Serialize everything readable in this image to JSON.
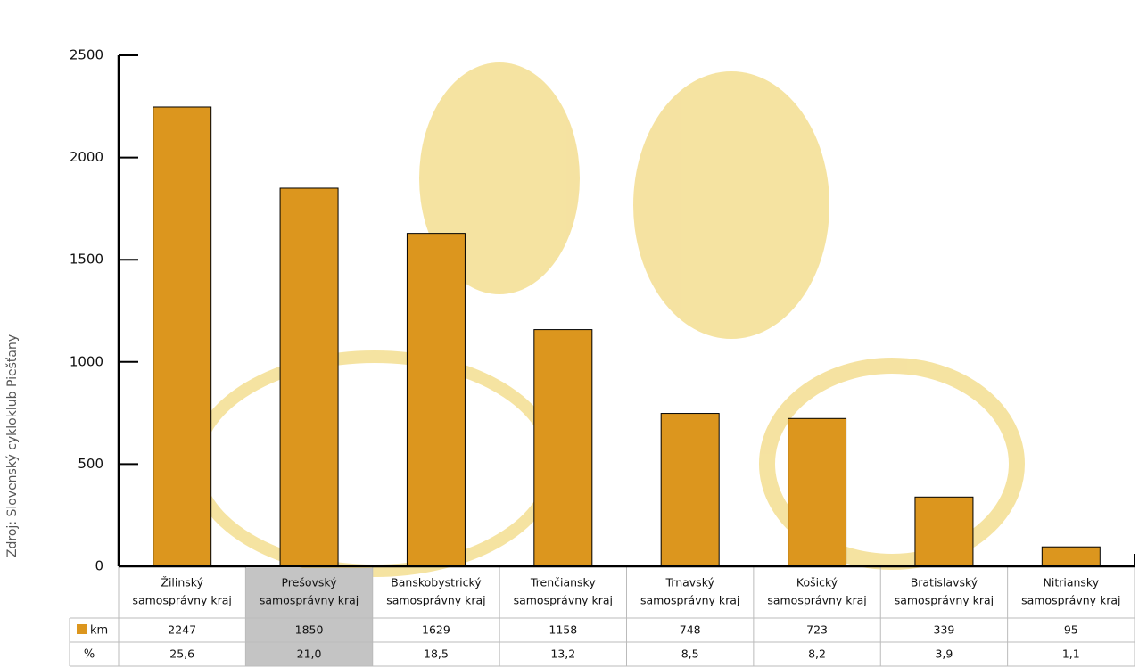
{
  "chart_data": {
    "type": "bar",
    "source": "Zdroj: Slovenský cykloklub Piešťany",
    "categories": [
      [
        "Žilinský",
        "samosprávny kraj"
      ],
      [
        "Prešovský",
        "samosprávny kraj"
      ],
      [
        "Banskobystrický",
        "samosprávny kraj"
      ],
      [
        "Trenčiansky",
        "samosprávny kraj"
      ],
      [
        "Trnavský",
        "samosprávny kraj"
      ],
      [
        "Košický",
        "samosprávny kraj"
      ],
      [
        "Bratislavský",
        "samosprávny kraj"
      ],
      [
        "Nitriansky",
        "samosprávny kraj"
      ]
    ],
    "series": [
      {
        "name": "km",
        "color": "#dc961e",
        "values": [
          2247,
          1850,
          1629,
          1158,
          748,
          723,
          339,
          95
        ]
      },
      {
        "name": "%",
        "values": [
          25.6,
          21.0,
          18.5,
          13.2,
          8.5,
          8.2,
          3.9,
          1.1
        ],
        "value_labels": [
          "25,6",
          "21,0",
          "18,5",
          "13,2",
          "8,5",
          "8,2",
          "3,9",
          "1,1"
        ]
      }
    ],
    "highlight_index": 1,
    "ylim": [
      0,
      2500
    ],
    "yticks": [
      0,
      500,
      1000,
      1500,
      2000,
      2500
    ]
  }
}
